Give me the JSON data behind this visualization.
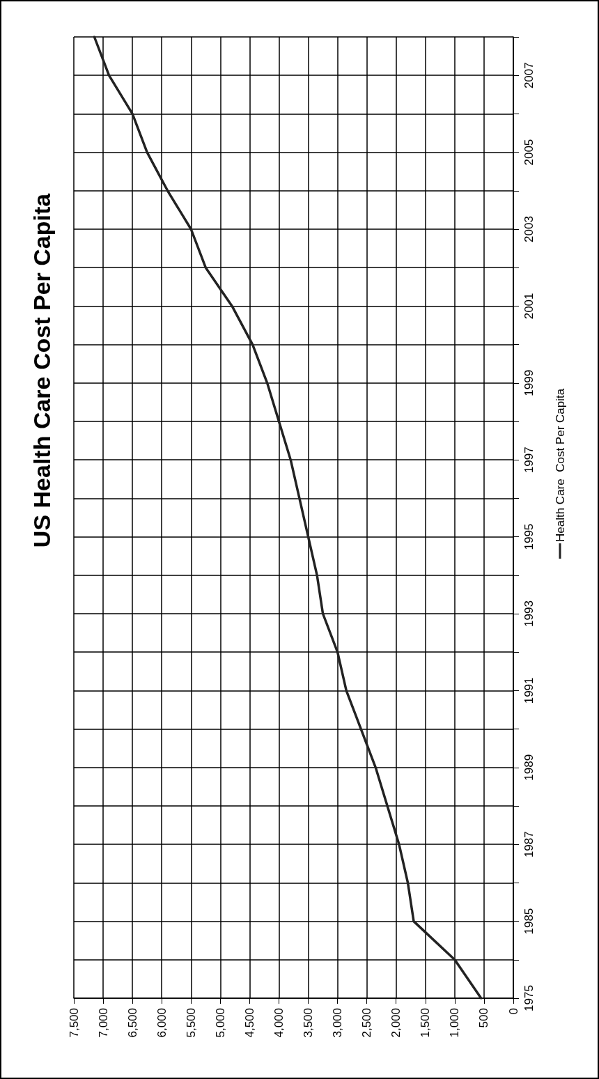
{
  "chart_data": {
    "type": "line",
    "title": "US Health Care Cost Per Capita",
    "orientation": "horizontal",
    "categories": [
      null,
      "2007",
      null,
      "2005",
      null,
      "2003",
      null,
      "2001",
      null,
      "1999",
      null,
      "1997",
      null,
      "1995",
      null,
      "1993",
      null,
      "1991",
      null,
      "1989",
      null,
      "1987",
      null,
      "1985",
      null,
      "1975"
    ],
    "series": [
      {
        "name": "Health Care  Cost Per Capita",
        "color": "#222222",
        "values": [
          7150,
          6900,
          6500,
          6250,
          5900,
          5500,
          5250,
          4800,
          4450,
          4200,
          4000,
          3800,
          3650,
          3500,
          3350,
          3250,
          3000,
          2850,
          2600,
          2350,
          2150,
          1950,
          1800,
          1700,
          1000,
          550
        ]
      }
    ],
    "xlim": [
      7500,
      0
    ],
    "xticks": [
      0,
      500,
      {
        "value": 1000,
        "label": "1,000"
      },
      {
        "value": 1500,
        "label": "1,500"
      },
      {
        "value": 2000,
        "label": "2,000"
      },
      {
        "value": 2500,
        "label": "2,500"
      },
      {
        "value": 3000,
        "label": "3,000"
      },
      {
        "value": 3500,
        "label": "3,500"
      },
      {
        "value": 4000,
        "label": "4,000"
      },
      {
        "value": 4500,
        "label": "4,500"
      },
      {
        "value": 5000,
        "label": "5,000"
      },
      {
        "value": 5500,
        "label": "5,500"
      },
      {
        "value": 6000,
        "label": "6,000"
      },
      {
        "value": 6500,
        "label": "6,500"
      },
      {
        "value": 7000,
        "label": "7,000"
      },
      {
        "value": 7500,
        "label": "7,500"
      }
    ],
    "grid": true,
    "legend": "right",
    "marker": "none",
    "line_style": "solid"
  }
}
